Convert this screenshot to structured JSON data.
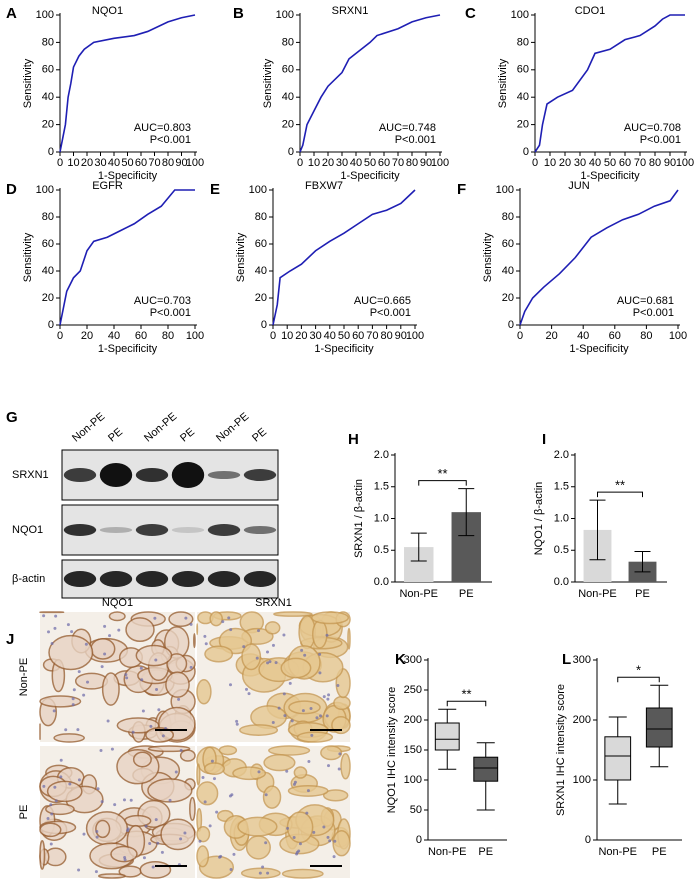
{
  "chart_data": [
    {
      "type": "line",
      "panel": "A",
      "title": "NQO1",
      "x_label": "1-Specificity",
      "y_label": "Sensitivity",
      "color": "#1f1fb4",
      "x": [
        0,
        2,
        4,
        6,
        8,
        10,
        14,
        18,
        25,
        40,
        55,
        65,
        80,
        90,
        100
      ],
      "values": [
        0,
        10,
        20,
        40,
        50,
        62,
        70,
        75,
        80,
        83,
        85,
        88,
        95,
        98,
        100
      ],
      "annotations": [
        "AUC=0.803",
        "P<0.001"
      ],
      "xlim": [
        0,
        100
      ],
      "ylim": [
        0,
        100
      ],
      "xticks": [
        0,
        10,
        20,
        30,
        40,
        50,
        60,
        70,
        80,
        90,
        100
      ],
      "yticks": [
        0,
        20,
        40,
        60,
        80,
        100
      ]
    },
    {
      "type": "line",
      "panel": "B",
      "title": "SRXN1",
      "x_label": "1-Specificity",
      "y_label": "Sensitivity",
      "color": "#1f1fb4",
      "x": [
        0,
        2,
        5,
        10,
        15,
        20,
        30,
        35,
        40,
        50,
        55,
        70,
        80,
        90,
        100
      ],
      "values": [
        0,
        5,
        20,
        30,
        40,
        48,
        58,
        68,
        72,
        80,
        85,
        90,
        95,
        98,
        100
      ],
      "annotations": [
        "AUC=0.748",
        "P<0.001"
      ],
      "xlim": [
        0,
        100
      ],
      "ylim": [
        0,
        100
      ],
      "xticks": [
        0,
        10,
        20,
        30,
        40,
        50,
        60,
        70,
        80,
        90,
        100
      ],
      "yticks": [
        0,
        20,
        40,
        60,
        80,
        100
      ]
    },
    {
      "type": "line",
      "panel": "C",
      "title": "CDO1",
      "x_label": "1-Specificity",
      "y_label": "Sensitivity",
      "color": "#1f1fb4",
      "x": [
        0,
        3,
        5,
        8,
        15,
        25,
        35,
        40,
        50,
        60,
        70,
        80,
        85,
        90,
        100
      ],
      "values": [
        0,
        5,
        20,
        35,
        40,
        45,
        60,
        72,
        75,
        82,
        85,
        92,
        97,
        100,
        100
      ],
      "annotations": [
        "AUC=0.708",
        "P<0.001"
      ],
      "xlim": [
        0,
        100
      ],
      "ylim": [
        0,
        100
      ],
      "xticks": [
        0,
        10,
        20,
        30,
        40,
        50,
        60,
        70,
        80,
        90,
        100
      ],
      "yticks": [
        0,
        20,
        40,
        60,
        80,
        100
      ]
    },
    {
      "type": "line",
      "panel": "D",
      "title": "EGFR",
      "x_label": "1-Specificity",
      "y_label": "Sensitivity",
      "color": "#1f1fb4",
      "x": [
        0,
        3,
        5,
        10,
        15,
        20,
        25,
        35,
        45,
        55,
        65,
        75,
        85,
        100
      ],
      "values": [
        0,
        15,
        25,
        35,
        40,
        55,
        62,
        65,
        70,
        75,
        82,
        88,
        100,
        100
      ],
      "annotations": [
        "AUC=0.703",
        "P<0.001"
      ],
      "xlim": [
        0,
        100
      ],
      "ylim": [
        0,
        100
      ],
      "xticks": [
        0,
        20,
        40,
        60,
        80,
        100
      ],
      "yticks": [
        0,
        20,
        40,
        60,
        80,
        100
      ]
    },
    {
      "type": "line",
      "panel": "E",
      "title": "FBXW7",
      "x_label": "1-Specificity",
      "y_label": "Sensitivity",
      "color": "#1f1fb4",
      "x": [
        0,
        3,
        5,
        12,
        20,
        30,
        40,
        50,
        60,
        70,
        80,
        90,
        95,
        100
      ],
      "values": [
        0,
        15,
        35,
        40,
        45,
        55,
        62,
        68,
        75,
        82,
        85,
        90,
        95,
        100
      ],
      "annotations": [
        "AUC=0.665",
        "P<0.001"
      ],
      "xlim": [
        0,
        100
      ],
      "ylim": [
        0,
        100
      ],
      "xticks": [
        0,
        10,
        20,
        30,
        40,
        50,
        60,
        70,
        80,
        90,
        100
      ],
      "yticks": [
        0,
        20,
        40,
        60,
        80,
        100
      ]
    },
    {
      "type": "line",
      "panel": "F",
      "title": "JUN",
      "x_label": "1-Specificity",
      "y_label": "Sensitivity",
      "color": "#1f1fb4",
      "x": [
        0,
        3,
        8,
        15,
        25,
        35,
        45,
        55,
        65,
        75,
        85,
        95,
        100
      ],
      "values": [
        0,
        10,
        20,
        28,
        38,
        50,
        65,
        72,
        78,
        82,
        88,
        92,
        100
      ],
      "annotations": [
        "AUC=0.681",
        "P<0.001"
      ],
      "xlim": [
        0,
        100
      ],
      "ylim": [
        0,
        100
      ],
      "xticks": [
        0,
        20,
        40,
        60,
        80,
        100
      ],
      "yticks": [
        0,
        20,
        40,
        60,
        80,
        100
      ]
    },
    {
      "type": "bar",
      "panel": "H",
      "y_label": "SRXN1 / β-actin",
      "categories": [
        "Non-PE",
        "PE"
      ],
      "values": [
        0.55,
        1.1
      ],
      "errors": [
        0.22,
        0.37
      ],
      "colors": [
        "#d9d9d9",
        "#595959"
      ],
      "annotations": [
        "**"
      ],
      "ylim": [
        0,
        2
      ],
      "yticks": [
        {
          "value": 0,
          "label": "0.0"
        },
        0.5,
        {
          "value": 1,
          "label": "1.0"
        },
        1.5,
        {
          "value": 2,
          "label": "2.0"
        }
      ]
    },
    {
      "type": "bar",
      "panel": "I",
      "y_label": "NQO1 / β-actin",
      "categories": [
        "Non-PE",
        "PE"
      ],
      "values": [
        0.82,
        0.32
      ],
      "errors": [
        0.47,
        0.16
      ],
      "colors": [
        "#d9d9d9",
        "#595959"
      ],
      "annotations": [
        "**"
      ],
      "ylim": [
        0,
        2
      ],
      "yticks": [
        {
          "value": 0,
          "label": "0.0"
        },
        0.5,
        {
          "value": 1,
          "label": "1.0"
        },
        1.5,
        {
          "value": 2,
          "label": "2.0"
        }
      ]
    },
    {
      "type": "box",
      "panel": "K",
      "y_label": "NQO1 IHC intensity score",
      "categories": [
        "Non-PE",
        "PE"
      ],
      "boxes": [
        {
          "min": 118,
          "q1": 150,
          "median": 168,
          "q3": 195,
          "max": 218
        },
        {
          "min": 50,
          "q1": 98,
          "median": 120,
          "q3": 138,
          "max": 162
        }
      ],
      "colors": [
        "#d9d9d9",
        "#595959"
      ],
      "annotations": [
        "**"
      ],
      "ylim": [
        0,
        300
      ],
      "yticks": [
        0,
        50,
        100,
        150,
        200,
        250,
        300
      ]
    },
    {
      "type": "box",
      "panel": "L",
      "y_label": "SRXN1 IHC intensity score",
      "categories": [
        "Non-PE",
        "PE"
      ],
      "boxes": [
        {
          "min": 60,
          "q1": 100,
          "median": 140,
          "q3": 172,
          "max": 205
        },
        {
          "min": 122,
          "q1": 155,
          "median": 185,
          "q3": 220,
          "max": 258
        }
      ],
      "colors": [
        "#d9d9d9",
        "#595959"
      ],
      "annotations": [
        "*"
      ],
      "ylim": [
        0,
        300
      ],
      "yticks": [
        0,
        100,
        200,
        300
      ]
    }
  ],
  "blot": {
    "panel": "G",
    "lanes": [
      "Non-PE",
      "PE",
      "Non-PE",
      "PE",
      "Non-PE",
      "PE"
    ],
    "rows": [
      "SRXN1",
      "NQO1",
      "β-actin"
    ]
  },
  "histology": {
    "panel": "J",
    "columns": [
      "NQO1",
      "SRXN1"
    ],
    "rows": [
      "Non-PE",
      "PE"
    ]
  }
}
